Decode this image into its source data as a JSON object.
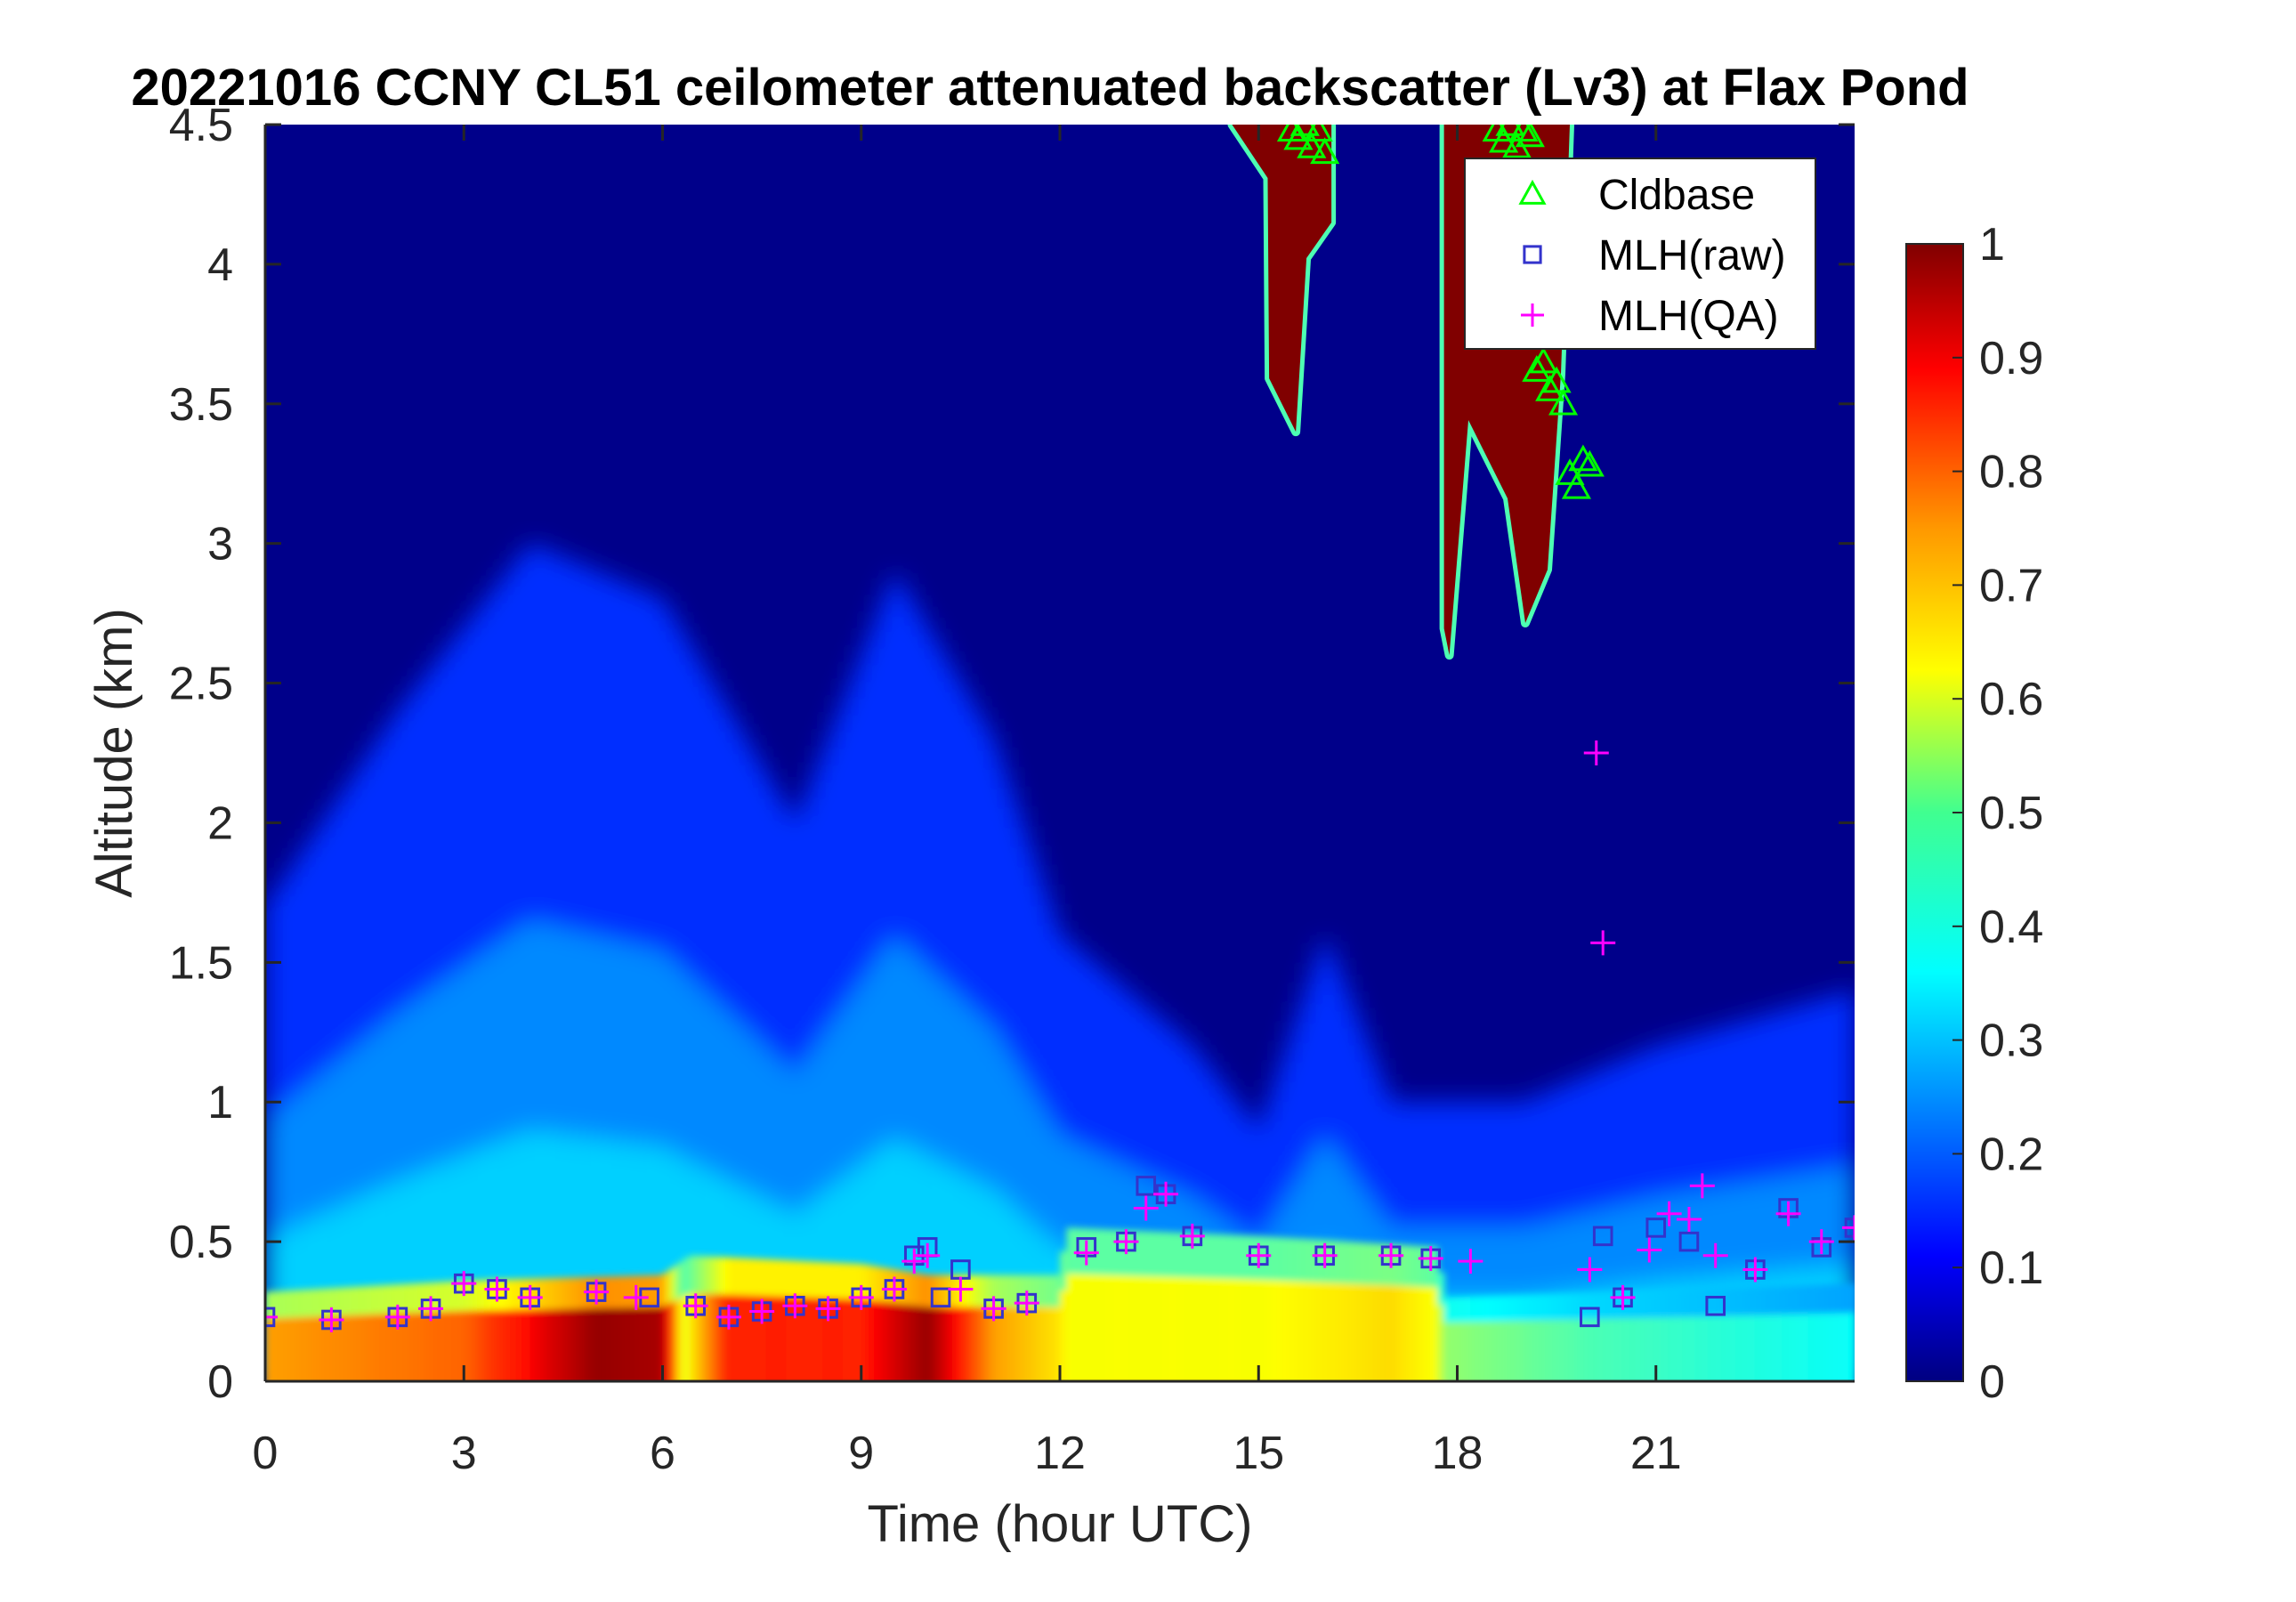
{
  "chart_data": {
    "type": "heatmap",
    "title": "20221016 CCNY CL51 ceilometer attenuated backscatter (Lv3) at Flax Pond",
    "xlabel": "Time (hour UTC)",
    "ylabel": "Altitude (km)",
    "xlim": [
      0,
      24
    ],
    "ylim": [
      0,
      4.5
    ],
    "xticks": [
      0,
      3,
      6,
      9,
      12,
      15,
      18,
      21
    ],
    "xtick_labels": [
      "0",
      "3",
      "6",
      "9",
      "12",
      "15",
      "18",
      "21"
    ],
    "yticks": [
      0,
      0.5,
      1,
      1.5,
      2,
      2.5,
      3,
      3.5,
      4,
      4.5
    ],
    "ytick_labels": [
      "0",
      "0.5",
      "1",
      "1.5",
      "2",
      "2.5",
      "3",
      "3.5",
      "4",
      "4.5"
    ],
    "colorbar": {
      "colormap": "jet",
      "clim": [
        0,
        1
      ],
      "ticks": [
        0,
        0.1,
        0.2,
        0.3,
        0.4,
        0.5,
        0.6,
        0.7,
        0.8,
        0.9,
        1
      ],
      "tick_labels": [
        "0",
        "0.1",
        "0.2",
        "0.3",
        "0.4",
        "0.5",
        "0.6",
        "0.7",
        "0.8",
        "0.9",
        "1"
      ]
    },
    "legend": {
      "placement": "top-right",
      "entries": [
        {
          "label": "Cldbase",
          "marker": "triangle",
          "color": "#00ff00"
        },
        {
          "label": "MLH(raw)",
          "marker": "square",
          "color": "#3333cc"
        },
        {
          "label": "MLH(QA)",
          "marker": "plus",
          "color": "#ff00ff"
        }
      ]
    },
    "grid": false,
    "backscatter_field": {
      "description_values": "normalized attenuated backscatter, 0-1",
      "surface_layer_top_km": [
        [
          0,
          0.32
        ],
        [
          3,
          0.36
        ],
        [
          6,
          0.38
        ],
        [
          6.4,
          0.45
        ],
        [
          9,
          0.42
        ],
        [
          10,
          0.38
        ],
        [
          12,
          0.38
        ],
        [
          12.1,
          0.55
        ],
        [
          15,
          0.52
        ],
        [
          17.7,
          0.48
        ],
        [
          17.8,
          0.3
        ],
        [
          24,
          0.35
        ]
      ],
      "surface_layer_value": [
        [
          0,
          0.72
        ],
        [
          3,
          0.78
        ],
        [
          5,
          0.98
        ],
        [
          6,
          0.96
        ],
        [
          6.3,
          0.6
        ],
        [
          7,
          0.85
        ],
        [
          9,
          0.85
        ],
        [
          10,
          0.98
        ],
        [
          11,
          0.72
        ],
        [
          12,
          0.65
        ],
        [
          12.1,
          0.62
        ],
        [
          15,
          0.62
        ],
        [
          17,
          0.66
        ],
        [
          17.7,
          0.62
        ],
        [
          17.8,
          0.52
        ],
        [
          20,
          0.45
        ],
        [
          24,
          0.38
        ]
      ],
      "aerosol_layer_top_km": [
        [
          0,
          1.7
        ],
        [
          2,
          2.4
        ],
        [
          4,
          3.0
        ],
        [
          6,
          2.8
        ],
        [
          8,
          2.0
        ],
        [
          9.5,
          2.9
        ],
        [
          11,
          2.3
        ],
        [
          12,
          1.6
        ],
        [
          14,
          1.2
        ],
        [
          15,
          0.9
        ],
        [
          16,
          1.6
        ],
        [
          17,
          1.0
        ],
        [
          19,
          1.0
        ],
        [
          21,
          1.2
        ],
        [
          24,
          1.4
        ]
      ]
    },
    "cloud_layers": [
      {
        "x_start": 14.6,
        "x_end": 16.1,
        "base_km": 3.4,
        "top_km": 4.5
      },
      {
        "x_start": 17.8,
        "x_end": 19.7,
        "base_km": 2.6,
        "top_km": 4.5
      }
    ],
    "series": [
      {
        "name": "Cldbase",
        "marker": "triangle",
        "color": "#00ff00",
        "x": [
          15.5,
          15.6,
          15.7,
          15.8,
          15.9,
          16.0,
          18.6,
          18.7,
          18.8,
          18.9,
          19.0,
          19.1,
          19.2,
          19.3,
          19.4,
          19.5,
          19.6,
          19.7,
          19.8,
          19.9,
          20.0
        ],
        "y": [
          4.48,
          4.45,
          4.5,
          4.42,
          4.48,
          4.4,
          4.48,
          4.44,
          4.5,
          4.42,
          4.48,
          4.46,
          3.62,
          3.65,
          3.55,
          3.58,
          3.5,
          3.25,
          3.2,
          3.3,
          3.28
        ]
      },
      {
        "name": "MLH(raw)",
        "marker": "square",
        "color": "#3333cc",
        "x": [
          0.0,
          1.0,
          2.0,
          2.5,
          3.0,
          3.5,
          4.0,
          5.0,
          5.8,
          6.5,
          7.0,
          7.5,
          8.0,
          8.5,
          9.0,
          9.5,
          9.8,
          10.0,
          10.2,
          10.5,
          11.0,
          11.5,
          12.4,
          13.0,
          13.3,
          13.6,
          14.0,
          15.0,
          16.0,
          17.0,
          17.6,
          20.0,
          20.2,
          20.5,
          21.0,
          21.5,
          21.9,
          22.5,
          23.0,
          23.5,
          24.0
        ],
        "y": [
          0.23,
          0.22,
          0.23,
          0.26,
          0.35,
          0.33,
          0.3,
          0.32,
          0.3,
          0.27,
          0.23,
          0.25,
          0.27,
          0.26,
          0.3,
          0.33,
          0.45,
          0.48,
          0.3,
          0.4,
          0.26,
          0.28,
          0.48,
          0.5,
          0.7,
          0.67,
          0.52,
          0.45,
          0.45,
          0.45,
          0.44,
          0.23,
          0.52,
          0.3,
          0.55,
          0.5,
          0.27,
          0.4,
          0.62,
          0.48,
          0.55
        ]
      },
      {
        "name": "MLH(QA)",
        "marker": "plus",
        "color": "#ff00ff",
        "x": [
          0.0,
          1.0,
          2.0,
          2.5,
          3.0,
          3.5,
          4.0,
          5.0,
          5.6,
          6.5,
          7.0,
          7.5,
          8.0,
          8.5,
          9.0,
          9.5,
          9.8,
          10.0,
          10.5,
          11.0,
          11.5,
          12.4,
          13.0,
          13.3,
          13.6,
          14.0,
          15.0,
          16.0,
          17.0,
          17.6,
          18.2,
          20.0,
          20.1,
          20.2,
          20.5,
          20.9,
          21.2,
          21.5,
          21.7,
          21.9,
          22.5,
          23.0,
          23.5,
          24.0
        ],
        "y": [
          0.23,
          0.22,
          0.23,
          0.26,
          0.35,
          0.33,
          0.3,
          0.32,
          0.3,
          0.27,
          0.23,
          0.25,
          0.27,
          0.26,
          0.3,
          0.33,
          0.43,
          0.45,
          0.33,
          0.26,
          0.28,
          0.46,
          0.5,
          0.62,
          0.67,
          0.52,
          0.45,
          0.45,
          0.45,
          0.44,
          0.43,
          0.4,
          2.25,
          1.57,
          0.3,
          0.47,
          0.6,
          0.58,
          0.7,
          0.45,
          0.4,
          0.6,
          0.5,
          0.55
        ]
      }
    ]
  }
}
